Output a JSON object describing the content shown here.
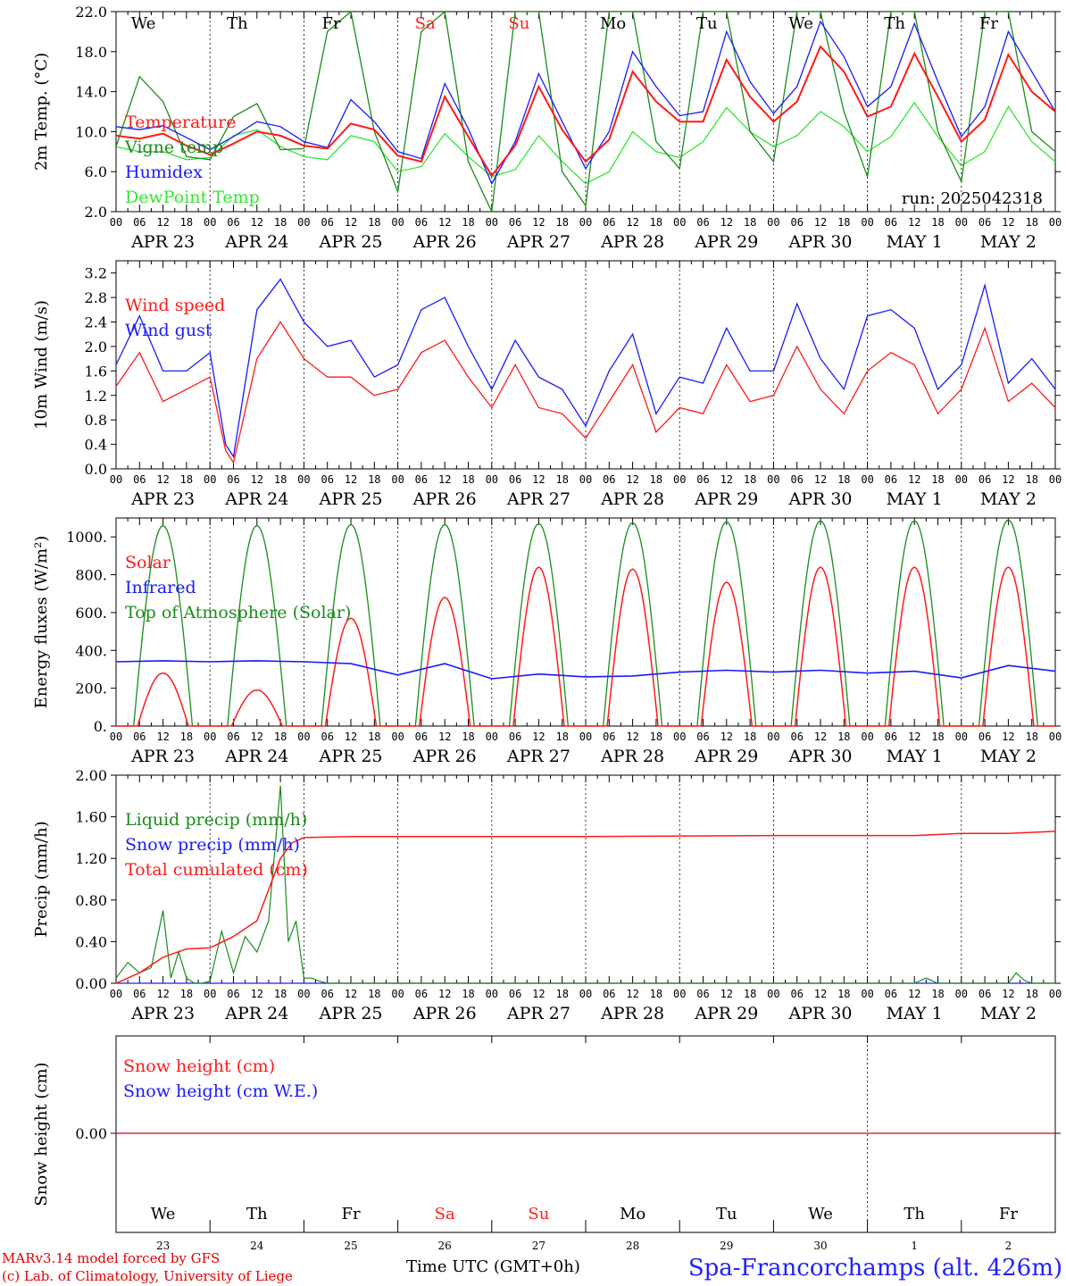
{
  "colors": {
    "red": "#ff1a1a",
    "green": "#1a8c1a",
    "blue": "#1a1aff",
    "lightgreen": "#33e633",
    "weekend": "#ff2020"
  },
  "days": {
    "dow": [
      "We",
      "Th",
      "Fr",
      "Sa",
      "Su",
      "Mo",
      "Tu",
      "We",
      "Th",
      "Fr"
    ],
    "weekend_index": [
      3,
      4
    ],
    "dates": [
      "APR 23",
      "APR 24",
      "APR 25",
      "APR 26",
      "APR 27",
      "APR 28",
      "APR 29",
      "APR 30",
      "MAY  1",
      "MAY  2"
    ],
    "hour_labels": [
      "00",
      "06",
      "12",
      "18"
    ],
    "final_hour_label": "00",
    "day_numbers": [
      "23",
      "24",
      "25",
      "26",
      "27",
      "28",
      "29",
      "30",
      "1",
      "2"
    ]
  },
  "run_label": "run: 2025042318",
  "footer": {
    "model": "MARv3.14 model forced by GFS",
    "copyright": "(c) Lab. of Climatology, University of Liege",
    "axis_title": "Time UTC (GMT+0h)",
    "station": "Spa-Francorchamps (alt. 426m)"
  },
  "chart_data": [
    {
      "type": "line",
      "id": "temperature",
      "ylabel": "2m Temp. (°C)",
      "ylim": [
        2.0,
        22.0
      ],
      "yticks": [
        "2.0",
        "6.0",
        "10.0",
        "14.0",
        "18.0",
        "22.0"
      ],
      "x": "hours since APR 23 00 UTC",
      "series": [
        {
          "name": "Temperature",
          "color": "red",
          "x": [
            0,
            6,
            12,
            18,
            24,
            30,
            36,
            42,
            48,
            54,
            60,
            66,
            72,
            78,
            84,
            90,
            96,
            102,
            108,
            114,
            120,
            126,
            132,
            138,
            144,
            150,
            156,
            162,
            168,
            174,
            180,
            186,
            192,
            198,
            204,
            210,
            216,
            222,
            228,
            234,
            240
          ],
          "values": [
            9.6,
            9.3,
            9.8,
            8.6,
            7.7,
            8.8,
            10.0,
            9.6,
            8.6,
            8.3,
            10.8,
            10.2,
            7.6,
            7.0,
            13.5,
            9.5,
            5.6,
            8.6,
            14.5,
            10.2,
            7.0,
            9.2,
            16.0,
            13.0,
            11.0,
            11.0,
            17.2,
            13.5,
            11.0,
            13.0,
            18.5,
            16.0,
            11.5,
            12.5,
            17.8,
            13.5,
            9.0,
            11.2,
            17.7,
            14.0,
            12.0
          ]
        },
        {
          "name": "Vigne temp",
          "color": "green",
          "x": [
            0,
            6,
            12,
            18,
            24,
            30,
            36,
            42,
            48,
            54,
            60,
            66,
            72,
            78,
            84,
            90,
            96,
            102,
            108,
            114,
            120,
            126,
            132,
            138,
            144,
            150,
            156,
            162,
            168,
            174,
            180,
            186,
            192,
            198,
            204,
            210,
            216,
            222,
            228,
            234,
            240
          ],
          "values": [
            8.5,
            15.5,
            13.0,
            7.5,
            7.2,
            11.5,
            12.8,
            8.2,
            8.3,
            20.0,
            22.0,
            10.0,
            4.0,
            20.0,
            22.0,
            7.0,
            2.0,
            22.0,
            22.0,
            6.0,
            2.6,
            22.0,
            22.0,
            9.0,
            6.3,
            22.0,
            22.0,
            10.0,
            7.0,
            22.0,
            22.0,
            12.0,
            5.5,
            22.0,
            22.0,
            10.0,
            5.0,
            22.0,
            22.0,
            10.0,
            8.0
          ]
        },
        {
          "name": "Humidex",
          "color": "blue",
          "x": [
            0,
            6,
            12,
            18,
            24,
            30,
            36,
            42,
            48,
            54,
            60,
            66,
            72,
            78,
            84,
            90,
            96,
            102,
            108,
            114,
            120,
            126,
            132,
            138,
            144,
            150,
            156,
            162,
            168,
            174,
            180,
            186,
            192,
            198,
            204,
            210,
            216,
            222,
            228,
            234,
            240
          ],
          "values": [
            10.5,
            10.2,
            10.6,
            9.4,
            8.2,
            9.5,
            11.0,
            10.5,
            9.0,
            8.4,
            13.2,
            11.0,
            8.0,
            7.3,
            14.8,
            10.3,
            4.8,
            9.0,
            15.8,
            11.0,
            6.3,
            10.0,
            18.0,
            14.5,
            11.6,
            12.0,
            20.0,
            15.0,
            11.8,
            14.5,
            21.0,
            17.5,
            12.5,
            14.5,
            20.8,
            15.0,
            9.5,
            12.5,
            20.0,
            16.0,
            12.0
          ]
        },
        {
          "name": "DewPoint Temp",
          "color": "lightgreen",
          "x": [
            0,
            6,
            12,
            18,
            24,
            30,
            36,
            42,
            48,
            54,
            60,
            66,
            72,
            78,
            84,
            90,
            96,
            102,
            108,
            114,
            120,
            126,
            132,
            138,
            144,
            150,
            156,
            162,
            168,
            174,
            180,
            186,
            192,
            198,
            204,
            210,
            216,
            222,
            228,
            234,
            240
          ],
          "values": [
            8.5,
            8.0,
            8.0,
            7.2,
            7.4,
            9.6,
            10.2,
            8.5,
            7.5,
            7.2,
            9.6,
            9.0,
            6.0,
            6.5,
            9.8,
            7.5,
            5.5,
            6.2,
            9.6,
            7.0,
            4.8,
            6.0,
            10.0,
            8.0,
            7.4,
            9.0,
            12.4,
            10.0,
            8.5,
            9.6,
            12.0,
            10.5,
            8.0,
            9.5,
            12.9,
            9.5,
            6.6,
            8.0,
            12.5,
            9.0,
            7.0
          ]
        }
      ]
    },
    {
      "type": "line",
      "id": "wind",
      "ylabel": "10m Wind (m/s)",
      "ylim": [
        0.0,
        3.4
      ],
      "yticks": [
        "0.0",
        "0.4",
        "0.8",
        "1.2",
        "1.6",
        "2.0",
        "2.4",
        "2.8",
        "3.2"
      ],
      "x": "hours since APR 23 00 UTC",
      "series": [
        {
          "name": "Wind speed",
          "color": "red",
          "x": [
            0,
            6,
            12,
            18,
            24,
            28,
            30,
            36,
            42,
            48,
            54,
            60,
            66,
            72,
            78,
            84,
            90,
            96,
            102,
            108,
            114,
            120,
            126,
            132,
            138,
            144,
            150,
            156,
            162,
            168,
            174,
            180,
            186,
            192,
            198,
            204,
            210,
            216,
            222,
            228,
            234,
            240
          ],
          "values": [
            1.35,
            1.9,
            1.1,
            1.3,
            1.5,
            0.3,
            0.1,
            1.8,
            2.4,
            1.8,
            1.5,
            1.5,
            1.2,
            1.3,
            1.9,
            2.1,
            1.5,
            1.0,
            1.7,
            1.0,
            0.9,
            0.5,
            1.1,
            1.7,
            0.6,
            1.0,
            0.9,
            1.7,
            1.1,
            1.2,
            2.0,
            1.3,
            0.9,
            1.6,
            1.9,
            1.7,
            0.9,
            1.3,
            2.3,
            1.1,
            1.4,
            1.0
          ]
        },
        {
          "name": "Wind gust",
          "color": "blue",
          "x": [
            0,
            6,
            12,
            18,
            24,
            28,
            30,
            36,
            42,
            48,
            54,
            60,
            66,
            72,
            78,
            84,
            90,
            96,
            102,
            108,
            114,
            120,
            126,
            132,
            138,
            144,
            150,
            156,
            162,
            168,
            174,
            180,
            186,
            192,
            198,
            204,
            210,
            216,
            222,
            228,
            234,
            240
          ],
          "values": [
            1.7,
            2.5,
            1.6,
            1.6,
            1.9,
            0.4,
            0.2,
            2.6,
            3.1,
            2.4,
            2.0,
            2.1,
            1.5,
            1.7,
            2.6,
            2.8,
            2.0,
            1.3,
            2.1,
            1.5,
            1.3,
            0.7,
            1.6,
            2.2,
            0.9,
            1.5,
            1.4,
            2.3,
            1.6,
            1.6,
            2.7,
            1.8,
            1.3,
            2.5,
            2.6,
            2.3,
            1.3,
            1.7,
            3.0,
            1.4,
            1.8,
            1.3
          ]
        }
      ]
    },
    {
      "type": "line",
      "id": "energy",
      "ylabel": "Energy fluxes (W/m²)",
      "ylim": [
        0,
        1100
      ],
      "yticks": [
        "0.",
        "200.",
        "400.",
        "600.",
        "800.",
        "1000."
      ],
      "x": "hours since APR 23 00 UTC",
      "series": [
        {
          "name": "Solar",
          "color": "red",
          "day_peaks": [
            280,
            190,
            570,
            680,
            840,
            830,
            760,
            840,
            840,
            840
          ]
        },
        {
          "name": "Infrared",
          "color": "blue",
          "x": [
            0,
            12,
            24,
            36,
            48,
            60,
            72,
            84,
            96,
            108,
            120,
            132,
            144,
            156,
            168,
            180,
            192,
            204,
            216,
            228,
            240
          ],
          "values": [
            340,
            345,
            340,
            345,
            340,
            330,
            270,
            330,
            250,
            275,
            260,
            265,
            285,
            295,
            285,
            295,
            280,
            290,
            255,
            320,
            290
          ]
        },
        {
          "name": "Top of Atmosphere (Solar)",
          "color": "green",
          "day_peaks": [
            1060,
            1060,
            1065,
            1065,
            1070,
            1075,
            1080,
            1085,
            1085,
            1090
          ]
        }
      ]
    },
    {
      "type": "line",
      "id": "precip",
      "ylabel": "Precip (mm/h)",
      "ylim": [
        0.0,
        2.0
      ],
      "yticks": [
        "0.00",
        "0.40",
        "0.80",
        "1.20",
        "1.60",
        "2.00"
      ],
      "x": "hours since APR 23 00 UTC",
      "series": [
        {
          "name": "Liquid precip (mm/h)",
          "color": "green",
          "x": [
            0,
            3,
            6,
            9,
            12,
            14,
            16,
            18,
            20,
            22,
            24,
            27,
            30,
            33,
            36,
            39,
            42,
            44,
            46,
            48,
            50,
            52,
            54,
            57,
            60,
            66,
            72,
            168,
            204,
            207,
            210,
            216,
            228,
            230,
            232,
            234,
            240
          ],
          "values": [
            0.05,
            0.2,
            0.1,
            0.15,
            0.7,
            0.05,
            0.3,
            0.05,
            0.0,
            0.0,
            0.02,
            0.5,
            0.1,
            0.45,
            0.3,
            0.6,
            1.9,
            0.4,
            0.6,
            0.05,
            0.05,
            0.02,
            0.0,
            0.0,
            0.0,
            0.0,
            0.0,
            0.0,
            0.0,
            0.05,
            0.0,
            0.0,
            0.0,
            0.1,
            0.03,
            0.0,
            0.0
          ]
        },
        {
          "name": "Snow precip (mm/h)",
          "color": "blue",
          "x": [
            0,
            240
          ],
          "values": [
            0.0,
            0.0
          ]
        },
        {
          "name": "Total cumulated (cm)",
          "color": "red",
          "x": [
            0,
            6,
            12,
            18,
            24,
            30,
            36,
            42,
            45,
            48,
            60,
            120,
            168,
            204,
            216,
            228,
            240
          ],
          "values": [
            0.0,
            0.1,
            0.25,
            0.33,
            0.34,
            0.45,
            0.6,
            1.2,
            1.35,
            1.4,
            1.41,
            1.41,
            1.42,
            1.42,
            1.44,
            1.44,
            1.46
          ]
        }
      ]
    },
    {
      "type": "line",
      "id": "snow",
      "ylabel": "Snow height (cm)",
      "ytick": "0.00",
      "series": [
        {
          "name": "Snow height (cm)",
          "color": "red",
          "x": [
            0,
            240
          ],
          "values": [
            0.0,
            0.0
          ]
        },
        {
          "name": "Snow height (cm W.E.)",
          "color": "blue",
          "x": [
            0,
            240
          ],
          "values": [
            0.0,
            0.0
          ]
        }
      ]
    }
  ]
}
